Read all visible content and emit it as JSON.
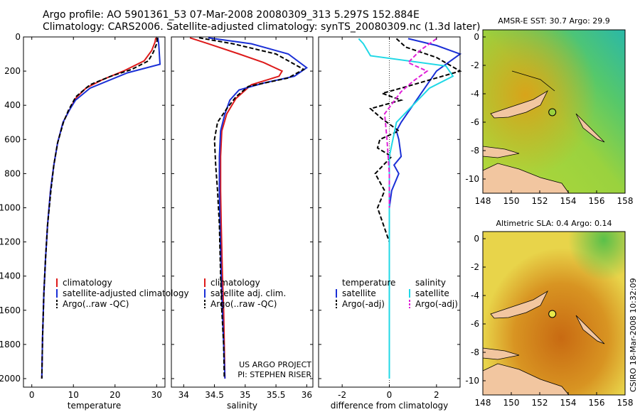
{
  "header": {
    "line1": "Argo profile: AO 5901361_53 07-Mar-2008 20080309_313 5.297S 152.884E",
    "line2": "Climatology: CARS2006. Satellite-adjusted climatology: synTS_20080309.nc (1.3d later)"
  },
  "side_label": "CSIRO 18-Mar-2008 10:32:09",
  "colors": {
    "climatology": "#dd1a1a",
    "satellite": "#1a2fd6",
    "argo": "#000000",
    "satellite_sal_diff": "#20d8e6",
    "argo_sal_diff": "#e020d8"
  },
  "chart_data": [
    {
      "type": "line",
      "id": "temperature",
      "xlabel": "temperature",
      "ylabel": "",
      "xlim": [
        -2,
        32
      ],
      "ylim": [
        2050,
        0
      ],
      "xticks": [
        0,
        10,
        20,
        30
      ],
      "yticks": [
        0,
        200,
        400,
        600,
        800,
        1000,
        1200,
        1400,
        1600,
        1800,
        2000
      ],
      "legend_labels": [
        "climatology",
        "satellite-adjusted climatology",
        "Argo(..raw -QC)"
      ],
      "series": [
        {
          "name": "climatology",
          "dash": "solid",
          "x": [
            29.8,
            29.6,
            28.8,
            27,
            22,
            17,
            13,
            10.5,
            9,
            7.5,
            6.2,
            5.3,
            4.5,
            3.8,
            3.3,
            2.9,
            2.6,
            2.4
          ],
          "y": [
            5,
            30,
            80,
            140,
            200,
            250,
            300,
            360,
            430,
            500,
            620,
            750,
            900,
            1100,
            1300,
            1500,
            1750,
            2000
          ]
        },
        {
          "name": "satellite-adjusted climatology",
          "dash": "solid",
          "x": [
            30.3,
            30.5,
            30.6,
            30.7,
            30.8,
            23,
            14,
            10.5,
            9,
            7.5,
            6.2,
            5.3,
            4.5,
            3.8,
            3.3,
            2.9,
            2.6,
            2.4
          ],
          "y": [
            5,
            40,
            80,
            120,
            160,
            210,
            300,
            370,
            430,
            500,
            620,
            750,
            900,
            1100,
            1300,
            1500,
            1750,
            2000
          ]
        },
        {
          "name": "Argo(..raw -QC)",
          "dash": "dashed",
          "x": [
            30.2,
            30,
            29.2,
            28,
            24,
            19,
            14,
            10.6,
            8.8,
            7.6,
            6.2,
            5.3,
            4.6,
            3.8,
            3.3,
            2.9,
            2.6,
            2.4
          ],
          "y": [
            5,
            40,
            90,
            140,
            190,
            230,
            280,
            350,
            430,
            500,
            620,
            750,
            900,
            1100,
            1300,
            1500,
            1750,
            2000
          ]
        }
      ]
    },
    {
      "type": "line",
      "id": "salinity",
      "xlabel": "salinity",
      "ylabel": "",
      "xlim": [
        33.8,
        36.1
      ],
      "ylim": [
        2050,
        0
      ],
      "xticks": [
        34,
        34.5,
        35,
        35.5,
        36
      ],
      "yticks": [],
      "legend_labels": [
        "climatology",
        "satellite adj. clim.",
        "Argo(..raw -QC)"
      ],
      "annotation": [
        "US ARGO PROJECT",
        "PI: STEPHEN RISER"
      ],
      "series": [
        {
          "name": "climatology",
          "dash": "solid",
          "x": [
            34.1,
            34.4,
            34.9,
            35.3,
            35.6,
            35.55,
            35.1,
            34.85,
            34.7,
            34.62,
            34.6,
            34.6,
            34.61,
            34.63,
            34.65,
            34.66,
            34.67
          ],
          "y": [
            5,
            40,
            100,
            150,
            200,
            230,
            280,
            360,
            450,
            550,
            700,
            900,
            1100,
            1400,
            1600,
            1800,
            2000
          ]
        },
        {
          "name": "satellite adj. clim.",
          "dash": "solid",
          "x": [
            34.4,
            35.1,
            35.7,
            36.0,
            35.8,
            35.3,
            34.9,
            34.75,
            34.67,
            34.6,
            34.58,
            34.58,
            34.59,
            34.61,
            34.63,
            34.65,
            34.67
          ],
          "y": [
            5,
            40,
            100,
            180,
            230,
            270,
            310,
            370,
            450,
            550,
            700,
            900,
            1100,
            1400,
            1600,
            1800,
            2000
          ]
        },
        {
          "name": "Argo(..raw -QC)",
          "dash": "dashed",
          "x": [
            34.25,
            34.8,
            35.5,
            35.95,
            35.7,
            35.05,
            34.85,
            34.7,
            34.55,
            34.5,
            34.52,
            34.55,
            34.58,
            34.6,
            34.62,
            34.65,
            34.66
          ],
          "y": [
            5,
            40,
            100,
            190,
            240,
            290,
            350,
            420,
            500,
            600,
            750,
            900,
            1100,
            1400,
            1600,
            1800,
            2000
          ]
        }
      ]
    },
    {
      "type": "line",
      "id": "difference",
      "xlabel": "difference from climatology",
      "ylabel": "",
      "xlim": [
        -3,
        3
      ],
      "ylim": [
        2050,
        0
      ],
      "xticks": [
        -2,
        0,
        2
      ],
      "yticks": [],
      "legend_left": [
        "temperature",
        "satellite",
        "Argo(-adj)"
      ],
      "legend_right": [
        "salinity",
        "satellite",
        "Argo(-adj)"
      ],
      "series": [
        {
          "name": "temperature satellite",
          "dash": "solid",
          "x": [
            0.8,
            2,
            3,
            2,
            0.5,
            0.3,
            0.4,
            0.5,
            0.2,
            0.4,
            0.1,
            0,
            0,
            0,
            0,
            0
          ],
          "y": [
            10,
            50,
            100,
            200,
            500,
            550,
            600,
            700,
            750,
            800,
            900,
            1000,
            1200,
            1500,
            1800,
            2000
          ]
        },
        {
          "name": "temperature Argo(-adj)",
          "dash": "dashed",
          "x": [
            0.3,
            0.7,
            2,
            3,
            2,
            0.5,
            -0.3,
            0.5,
            -0.8,
            -0.3,
            0.4,
            -0.4,
            -0.5,
            0.1,
            -0.6,
            -0.2,
            -0.5,
            0,
            0
          ],
          "y": [
            10,
            60,
            120,
            200,
            240,
            300,
            330,
            370,
            420,
            480,
            550,
            600,
            650,
            700,
            800,
            900,
            1000,
            1200,
            1400
          ]
        },
        {
          "name": "salinity satellite",
          "dash": "solid",
          "x": [
            -1.3,
            -1.1,
            -0.8,
            2.4,
            2.7,
            1.7,
            0.3,
            0,
            0,
            0,
            0,
            0,
            0
          ],
          "y": [
            10,
            40,
            110,
            170,
            230,
            300,
            500,
            700,
            1000,
            1300,
            1600,
            1800,
            2000
          ]
        },
        {
          "name": "salinity Argo(-adj)",
          "dash": "dashed",
          "x": [
            2,
            1.3,
            0.8,
            1.6,
            1.0,
            0.5,
            -0.2,
            -0.1,
            0,
            0
          ],
          "y": [
            10,
            80,
            150,
            200,
            260,
            320,
            450,
            600,
            800,
            1000
          ]
        }
      ]
    },
    {
      "type": "heatmap",
      "id": "sst_map",
      "title": "AMSR-E SST: 30.7 Argo: 29.9",
      "xlim": [
        148,
        158
      ],
      "ylim": [
        -11,
        0.5
      ],
      "xticks": [
        148,
        150,
        152,
        154,
        156,
        158
      ],
      "yticks": [
        0,
        -2,
        -4,
        -6,
        -8,
        -10
      ],
      "marker": {
        "lon": 152.884,
        "lat": -5.297
      }
    },
    {
      "type": "heatmap",
      "id": "sla_map",
      "title": "Altimetric SLA: 0.4 Argo: 0.14",
      "xlim": [
        148,
        158
      ],
      "ylim": [
        -11,
        0.5
      ],
      "xticks": [
        148,
        150,
        152,
        154,
        156,
        158
      ],
      "yticks": [
        0,
        -2,
        -4,
        -6,
        -8,
        -10
      ],
      "marker": {
        "lon": 152.884,
        "lat": -5.297
      }
    }
  ]
}
